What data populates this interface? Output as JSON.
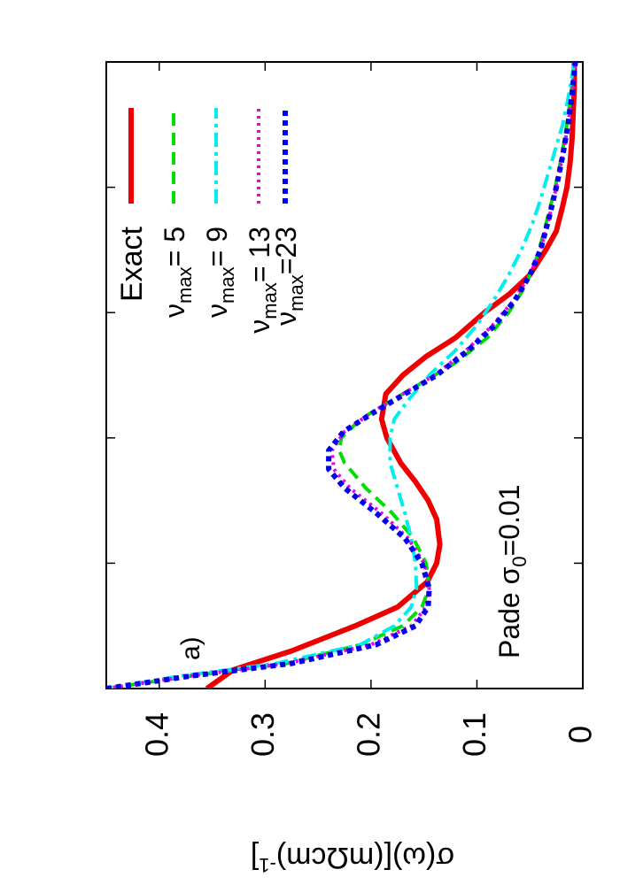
{
  "chart_data": {
    "type": "line",
    "orientation": "rotated-90-clockwise",
    "ylabel": "σ(ω)[(mΩcm)",
    "ylabel_sup": "-1",
    "ylabel_close": "]",
    "y_ticks": [
      "0",
      "0.1",
      "0.2",
      "0.3",
      "0.4"
    ],
    "ylim": [
      0,
      0.45
    ],
    "xlim": [
      0,
      1
    ],
    "panel_label": "a)",
    "annotation": {
      "prefix": "Pade σ",
      "sub": "0",
      "suffix": "=0.01"
    },
    "legend_position": "top-right",
    "series": [
      {
        "name": "Exact",
        "color": "#ee0000",
        "dash": "solid",
        "width": 6,
        "legend": {
          "prefix": "Exact",
          "sub": "",
          "suffix": ""
        },
        "x": [
          0,
          0.03,
          0.06,
          0.1,
          0.13,
          0.17,
          0.2,
          0.23,
          0.27,
          0.3,
          0.33,
          0.36,
          0.4,
          0.43,
          0.47,
          0.5,
          0.53,
          0.56,
          0.6,
          0.63,
          0.66,
          0.7,
          0.73,
          0.77,
          0.8,
          0.84,
          0.88,
          0.92,
          0.96,
          1.0
        ],
        "y": [
          0.355,
          0.33,
          0.275,
          0.215,
          0.175,
          0.147,
          0.138,
          0.135,
          0.138,
          0.146,
          0.158,
          0.172,
          0.185,
          0.19,
          0.186,
          0.17,
          0.148,
          0.12,
          0.093,
          0.069,
          0.05,
          0.035,
          0.025,
          0.019,
          0.015,
          0.012,
          0.01,
          0.009,
          0.008,
          0.008
        ]
      },
      {
        "name": "νmax= 5",
        "color": "#00dd00",
        "dash": "dashed",
        "width": 4,
        "legend": {
          "prefix": "ν",
          "sub": "max",
          "suffix": "=  5"
        },
        "x": [
          0,
          0.02,
          0.04,
          0.07,
          0.1,
          0.13,
          0.16,
          0.2,
          0.24,
          0.28,
          0.32,
          0.36,
          0.38,
          0.4,
          0.43,
          0.46,
          0.49,
          0.52,
          0.56,
          0.6,
          0.64,
          0.68,
          0.72,
          0.76,
          0.8,
          0.85,
          0.9,
          0.95,
          1.0
        ],
        "y": [
          0.45,
          0.37,
          0.28,
          0.21,
          0.17,
          0.152,
          0.145,
          0.148,
          0.16,
          0.18,
          0.205,
          0.225,
          0.23,
          0.228,
          0.21,
          0.18,
          0.15,
          0.12,
          0.09,
          0.07,
          0.055,
          0.045,
          0.038,
          0.032,
          0.026,
          0.02,
          0.015,
          0.011,
          0.008
        ]
      },
      {
        "name": "νmax= 9",
        "color": "#00eeee",
        "dash": "dashdot",
        "width": 4,
        "legend": {
          "prefix": "ν",
          "sub": "max",
          "suffix": "=  9"
        },
        "x": [
          0,
          0.02,
          0.04,
          0.07,
          0.1,
          0.13,
          0.16,
          0.2,
          0.24,
          0.28,
          0.32,
          0.36,
          0.4,
          0.43,
          0.46,
          0.5,
          0.54,
          0.58,
          0.62,
          0.66,
          0.7,
          0.74,
          0.78,
          0.82,
          0.86,
          0.9,
          0.95,
          1.0
        ],
        "y": [
          0.45,
          0.38,
          0.29,
          0.21,
          0.178,
          0.162,
          0.157,
          0.158,
          0.162,
          0.168,
          0.175,
          0.182,
          0.182,
          0.178,
          0.165,
          0.145,
          0.12,
          0.1,
          0.084,
          0.07,
          0.058,
          0.048,
          0.04,
          0.033,
          0.026,
          0.019,
          0.013,
          0.008
        ]
      },
      {
        "name": "νmax= 13",
        "color": "#ee00ee",
        "dash": "dotted",
        "width": 4,
        "legend": {
          "prefix": "ν",
          "sub": "max",
          "suffix": "= 13"
        },
        "x": [
          0,
          0.02,
          0.04,
          0.07,
          0.1,
          0.13,
          0.16,
          0.2,
          0.24,
          0.28,
          0.32,
          0.35,
          0.38,
          0.41,
          0.44,
          0.47,
          0.5,
          0.54,
          0.58,
          0.62,
          0.66,
          0.7,
          0.75,
          0.8,
          0.85,
          0.9,
          0.95,
          1.0
        ],
        "y": [
          0.45,
          0.37,
          0.28,
          0.2,
          0.162,
          0.148,
          0.145,
          0.15,
          0.165,
          0.19,
          0.22,
          0.235,
          0.237,
          0.225,
          0.2,
          0.17,
          0.14,
          0.11,
          0.085,
          0.065,
          0.05,
          0.04,
          0.032,
          0.025,
          0.019,
          0.014,
          0.01,
          0.007
        ]
      },
      {
        "name": "νmax=23",
        "color": "#0000ee",
        "dash": "dotted-thick",
        "width": 6,
        "legend": {
          "prefix": "ν",
          "sub": "max",
          "suffix": "=23"
        },
        "x": [
          0,
          0.02,
          0.04,
          0.07,
          0.1,
          0.13,
          0.16,
          0.2,
          0.24,
          0.28,
          0.32,
          0.35,
          0.38,
          0.41,
          0.44,
          0.47,
          0.5,
          0.54,
          0.58,
          0.62,
          0.66,
          0.7,
          0.75,
          0.8,
          0.85,
          0.9,
          0.95,
          1.0
        ],
        "y": [
          0.45,
          0.37,
          0.275,
          0.195,
          0.158,
          0.146,
          0.145,
          0.152,
          0.168,
          0.195,
          0.225,
          0.24,
          0.24,
          0.226,
          0.198,
          0.168,
          0.138,
          0.108,
          0.083,
          0.064,
          0.05,
          0.04,
          0.032,
          0.025,
          0.019,
          0.014,
          0.01,
          0.007
        ]
      }
    ]
  }
}
